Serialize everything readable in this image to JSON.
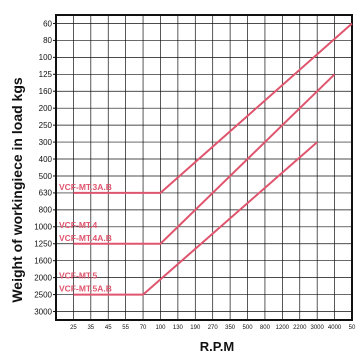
{
  "chart_data": {
    "type": "line",
    "ylabel": "Weight of workingiece in load kgs",
    "xlabel": "R.P.M",
    "x_ticks": [
      "25",
      "35",
      "45",
      "55",
      "70",
      "100",
      "130",
      "190",
      "270",
      "350",
      "500",
      "800",
      "1200",
      "2200",
      "3000",
      "4000",
      "50"
    ],
    "y_ticks": [
      "60",
      "80",
      "100",
      "125",
      "160",
      "200",
      "250",
      "300",
      "400",
      "500",
      "630",
      "800",
      "1000",
      "1250",
      "1600",
      "2000",
      "2500",
      "3000"
    ],
    "grid": true,
    "line_color": "#e0556e",
    "series": [
      {
        "labels": [
          "VCF-MT.3A.B"
        ],
        "points": [
          {
            "x": "25",
            "y": "630"
          },
          {
            "x": "100",
            "y": "630"
          },
          {
            "x": "50",
            "y": "60"
          }
        ]
      },
      {
        "labels": [
          "VCF-MT.4",
          "VCF-MT.4A.B"
        ],
        "points": [
          {
            "x": "25",
            "y": "1250"
          },
          {
            "x": "100",
            "y": "1250"
          },
          {
            "x": "4000",
            "y": "125"
          }
        ]
      },
      {
        "labels": [
          "VCF-MT.5",
          "VCF-MT.5A.B"
        ],
        "points": [
          {
            "x": "25",
            "y": "2500"
          },
          {
            "x": "70",
            "y": "2500"
          },
          {
            "x": "3000",
            "y": "300"
          }
        ]
      }
    ]
  }
}
